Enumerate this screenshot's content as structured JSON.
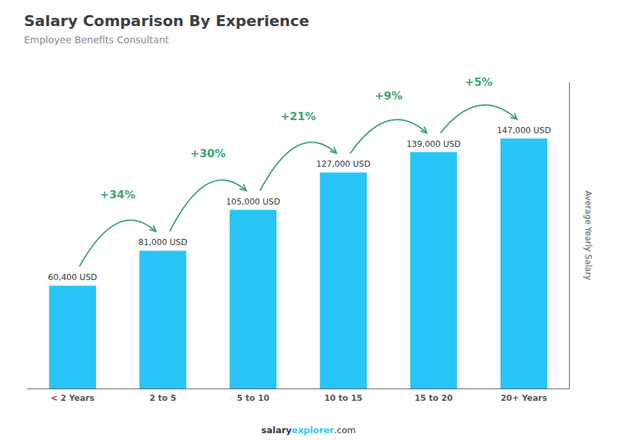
{
  "chart_data": {
    "type": "bar",
    "title": "Salary Comparison By Experience",
    "subtitle": "Employee Benefits Consultant",
    "categories": [
      "< 2 Years",
      "2 to 5",
      "5 to 10",
      "10 to 15",
      "15 to 20",
      "20+ Years"
    ],
    "values": [
      60400,
      81000,
      105000,
      127000,
      139000,
      147000
    ],
    "value_labels": [
      "60,400 USD",
      "81,000 USD",
      "105,000 USD",
      "127,000 USD",
      "139,000 USD",
      "147,000 USD"
    ],
    "data_labels": true,
    "annotations": [
      "+34%",
      "+30%",
      "+21%",
      "+9%",
      "+5%"
    ],
    "ylabel": "Average Yearly Salary",
    "footer": [
      "salary",
      "explorer",
      ".com"
    ],
    "color": "#29C5F6",
    "ylim": [
      0,
      180000
    ],
    "grid": false,
    "tick_labels": "x"
  }
}
